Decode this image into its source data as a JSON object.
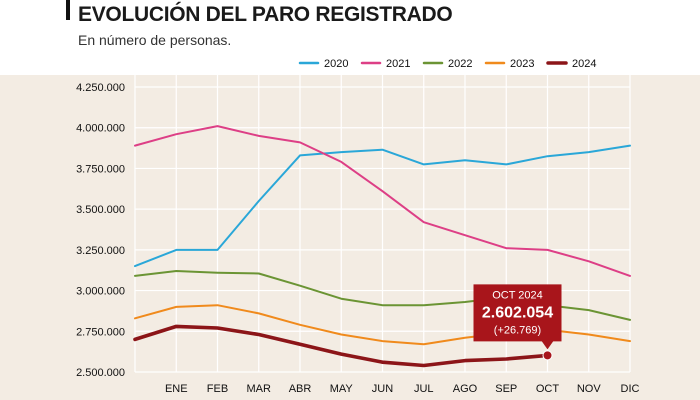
{
  "chart_data": {
    "type": "line",
    "title": "EVOLUCIÓN DEL PARO REGISTRADO",
    "subtitle": "En número de personas.",
    "categories": [
      "",
      "ENE",
      "FEB",
      "MAR",
      "ABR",
      "MAY",
      "JUN",
      "JUL",
      "AGO",
      "SEP",
      "OCT",
      "NOV",
      "DIC"
    ],
    "y_ticks": [
      "2.500.000",
      "2.750.000",
      "3.000.000",
      "3.250.000",
      "3.500.000",
      "3.750.000",
      "4.000.000",
      "4.250.000"
    ],
    "y_tick_values": [
      2500000,
      2750000,
      3000000,
      3250000,
      3500000,
      3750000,
      4000000,
      4250000
    ],
    "ylim": [
      2500000,
      4250000
    ],
    "grid": true,
    "legend_position": "top-right",
    "series": [
      {
        "name": "2020",
        "color": "#2aa7d8",
        "values": [
          3150000,
          3250000,
          3250000,
          3550000,
          3830000,
          3850000,
          3865000,
          3775000,
          3800000,
          3775000,
          3825000,
          3850000,
          3890000
        ]
      },
      {
        "name": "2021",
        "color": "#dd3f86",
        "values": [
          3890000,
          3960000,
          4010000,
          3950000,
          3910000,
          3790000,
          3610000,
          3420000,
          3340000,
          3260000,
          3250000,
          3180000,
          3090000
        ]
      },
      {
        "name": "2022",
        "color": "#6b9434",
        "values": [
          3090000,
          3120000,
          3110000,
          3105000,
          3030000,
          2950000,
          2910000,
          2910000,
          2930000,
          2960000,
          2910000,
          2880000,
          2820000
        ]
      },
      {
        "name": "2023",
        "color": "#f08a1c",
        "values": [
          2830000,
          2900000,
          2910000,
          2860000,
          2790000,
          2730000,
          2690000,
          2670000,
          2710000,
          2740000,
          2760000,
          2730000,
          2690000
        ]
      },
      {
        "name": "2024",
        "color": "#8c1518",
        "values": [
          2700000,
          2780000,
          2770000,
          2730000,
          2670000,
          2610000,
          2560000,
          2540000,
          2570000,
          2580000,
          2602054,
          null,
          null
        ],
        "bold": true
      }
    ],
    "annotation": {
      "label": "OCT 2024",
      "value_text": "2.602.054",
      "change_text": "(+26.769)",
      "category": "OCT",
      "value": 2602054,
      "color": "#a8151b"
    },
    "plot_background": "#f3ece3"
  }
}
